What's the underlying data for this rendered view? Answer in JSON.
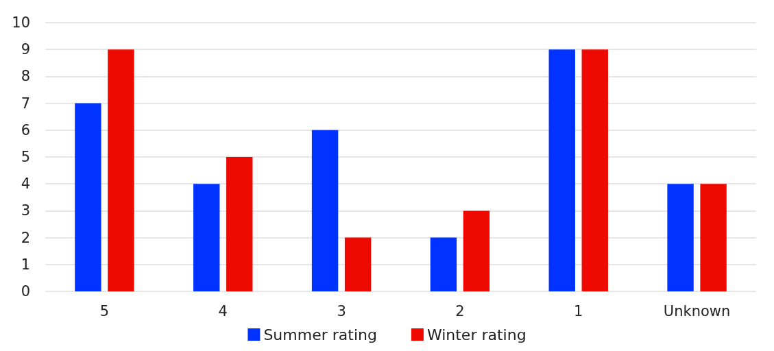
{
  "chart_data": {
    "type": "bar",
    "categories": [
      "5",
      "4",
      "3",
      "2",
      "1",
      "Unknown"
    ],
    "series": [
      {
        "name": "Summer rating",
        "color": "#0033ff",
        "values": [
          7,
          4,
          6,
          2,
          9,
          4
        ]
      },
      {
        "name": "Winter rating",
        "color": "#ee0a00",
        "values": [
          9,
          5,
          2,
          3,
          9,
          4
        ]
      }
    ],
    "ylim": [
      0,
      10
    ],
    "yticks": [
      0,
      1,
      2,
      3,
      4,
      5,
      6,
      7,
      8,
      9,
      10
    ],
    "grid": "y",
    "legend": "bottom"
  }
}
